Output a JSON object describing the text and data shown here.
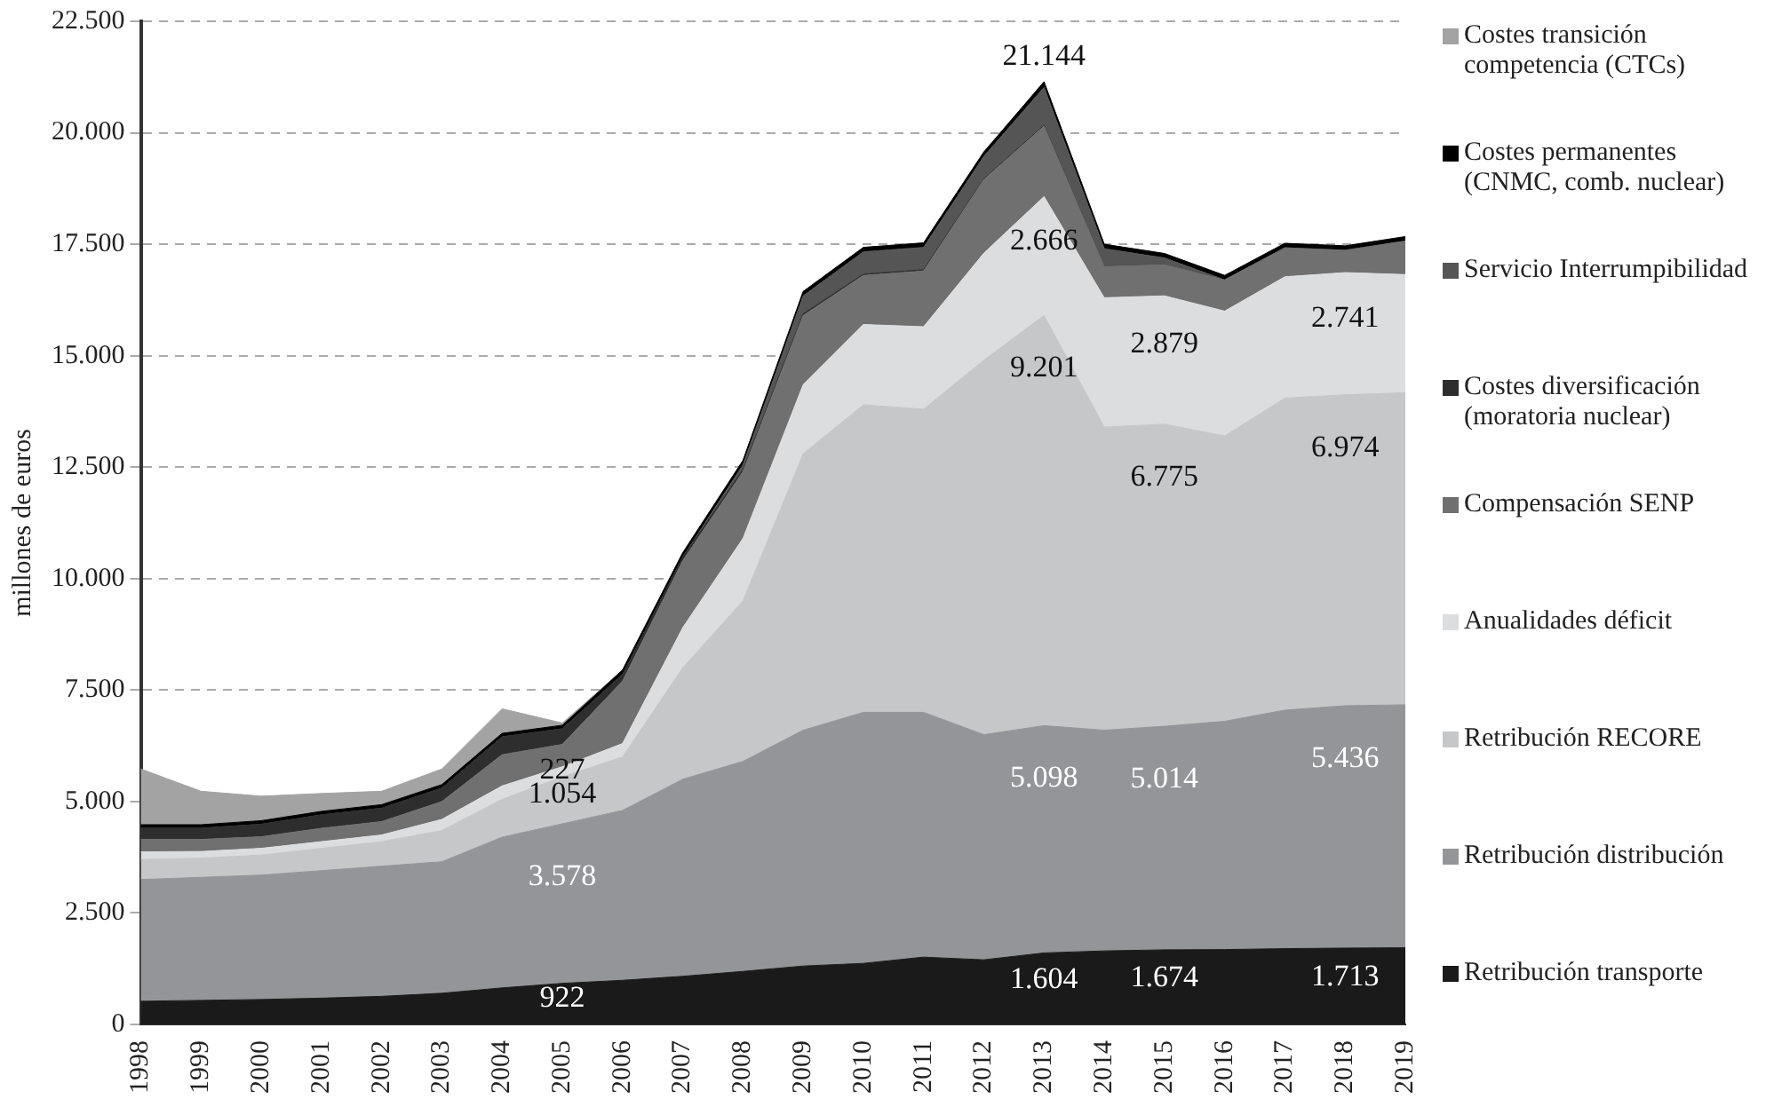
{
  "chart_data": {
    "type": "area",
    "stacked": true,
    "ylabel": "millones de euros",
    "categories": [
      "1998",
      "1999",
      "2000",
      "2001",
      "2002",
      "2003",
      "2004",
      "2005",
      "2006",
      "2007",
      "2008",
      "2009",
      "2010",
      "2011",
      "2012",
      "2013",
      "2014",
      "2015",
      "2016",
      "2017",
      "2018",
      "2019"
    ],
    "ylim": [
      0,
      22500
    ],
    "yticks": [
      {
        "value": 0,
        "label": "0"
      },
      {
        "value": 2500,
        "label": "2.500"
      },
      {
        "value": 5000,
        "label": "5.000"
      },
      {
        "value": 7500,
        "label": "7.500"
      },
      {
        "value": 10000,
        "label": "10.000"
      },
      {
        "value": 12500,
        "label": "12.500"
      },
      {
        "value": 15000,
        "label": "15.000"
      },
      {
        "value": 17500,
        "label": "17.500"
      },
      {
        "value": 20000,
        "label": "20.000"
      },
      {
        "value": 22500,
        "label": "22.500"
      }
    ],
    "grid": "y",
    "legend": "right",
    "series": [
      {
        "name": "Retribución transporte",
        "color": "#1a1a1a",
        "values": [
          520,
          540,
          560,
          590,
          630,
          700,
          820,
          922,
          990,
          1080,
          1190,
          1310,
          1370,
          1510,
          1450,
          1604,
          1650,
          1674,
          1680,
          1700,
          1713,
          1720
        ],
        "value_labels": [
          null,
          null,
          null,
          null,
          null,
          null,
          null,
          "922",
          null,
          null,
          null,
          null,
          null,
          null,
          null,
          "1.604",
          null,
          "1.674",
          null,
          null,
          "1.713",
          null
        ]
      },
      {
        "name": "Retribución distribución",
        "color": "#939598",
        "values": [
          2730,
          2760,
          2790,
          2860,
          2920,
          2950,
          3380,
          3578,
          3810,
          4420,
          4710,
          5290,
          5630,
          5490,
          5050,
          5098,
          4950,
          5014,
          5120,
          5350,
          5436,
          5450
        ],
        "value_labels": [
          null,
          null,
          null,
          null,
          null,
          null,
          null,
          "3.578",
          null,
          null,
          null,
          null,
          null,
          null,
          null,
          "5.098",
          null,
          "5.014",
          null,
          null,
          "5.436",
          null
        ]
      },
      {
        "name": "Retribución RECORE",
        "color": "#c6c7c9",
        "values": [
          450,
          430,
          450,
          500,
          550,
          700,
          850,
          1054,
          1200,
          2500,
          3600,
          6200,
          6900,
          6800,
          8400,
          9201,
          6800,
          6775,
          6400,
          7000,
          6974,
          7000
        ],
        "value_labels": [
          null,
          null,
          null,
          null,
          null,
          null,
          null,
          "1.054",
          null,
          null,
          null,
          null,
          null,
          null,
          null,
          "9.201",
          null,
          "6.775",
          null,
          null,
          "6.974",
          null
        ]
      },
      {
        "name": "Anualidades déficit",
        "color": "#dcdddf",
        "values": [
          170,
          150,
          150,
          150,
          150,
          250,
          300,
          227,
          300,
          900,
          1400,
          1550,
          1800,
          1850,
          2400,
          2666,
          2900,
          2879,
          2800,
          2720,
          2741,
          2650
        ],
        "value_labels": [
          null,
          null,
          null,
          null,
          null,
          null,
          null,
          "227",
          null,
          null,
          null,
          null,
          null,
          null,
          null,
          "2.666",
          null,
          "2.879",
          null,
          null,
          "2.741",
          null
        ]
      },
      {
        "name": "Compensación SENP",
        "color": "#707070",
        "values": [
          280,
          270,
          260,
          300,
          300,
          400,
          700,
          500,
          1400,
          1500,
          1500,
          1550,
          1100,
          1250,
          1650,
          1580,
          700,
          700,
          700,
          650,
          500,
          750
        ]
      },
      {
        "name": "Costes diversificación (moratoria nuclear)",
        "color": "#2e2e2e",
        "values": [
          250,
          250,
          280,
          300,
          300,
          300,
          400,
          350,
          150,
          80,
          50,
          40,
          30,
          30,
          20,
          20,
          0,
          0,
          0,
          0,
          0,
          0
        ]
      },
      {
        "name": "Servicio Interrumpibilidad",
        "color": "#555555",
        "values": [
          0,
          0,
          0,
          0,
          0,
          0,
          0,
          0,
          0,
          0,
          100,
          400,
          500,
          500,
          500,
          850,
          400,
          150,
          0,
          0,
          0,
          0
        ]
      },
      {
        "name": "Costes permanentes (CNMC, comb. nuclear)",
        "color": "#000000",
        "values": [
          80,
          80,
          80,
          80,
          80,
          80,
          80,
          80,
          100,
          100,
          100,
          100,
          100,
          100,
          100,
          125,
          100,
          100,
          100,
          100,
          100,
          100
        ]
      },
      {
        "name": "Costes transición competencia (CTCs)",
        "color": "#a3a3a3",
        "values": [
          1250,
          750,
          550,
          400,
          300,
          350,
          550,
          50,
          0,
          0,
          0,
          0,
          0,
          0,
          0,
          0,
          0,
          0,
          0,
          0,
          0,
          0
        ]
      }
    ],
    "annotations": [
      {
        "text": "21.144",
        "x": "2013",
        "y": 21144
      }
    ]
  }
}
